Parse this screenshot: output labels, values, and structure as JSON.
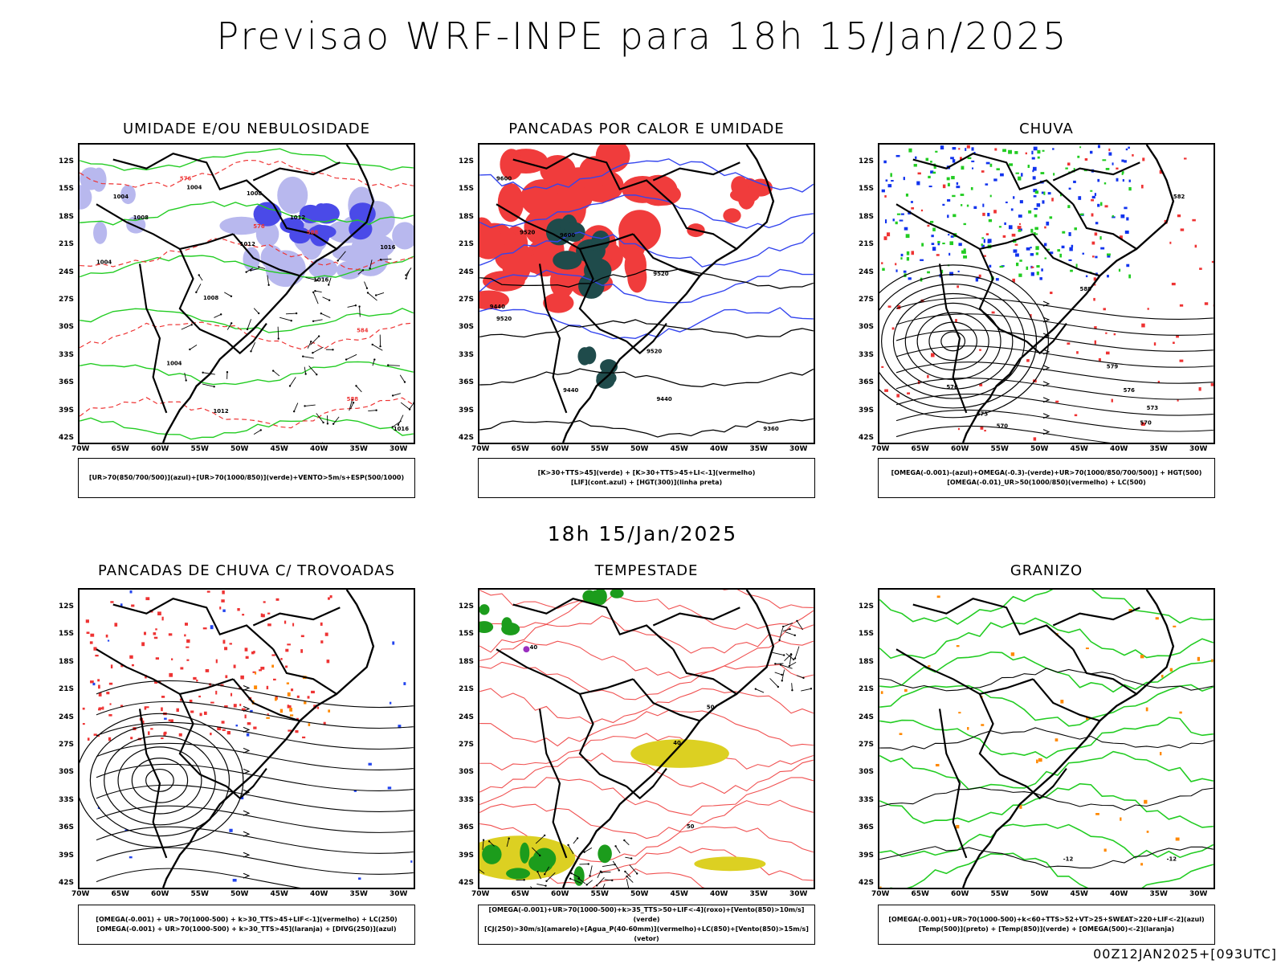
{
  "header": {
    "title": "Previsao WRF-INPE  para 18h 15/Jan/2025"
  },
  "middle_stamp": "18h 15/Jan/2025",
  "footer_stamp": "00Z12JAN2025+[093UTC]",
  "axes": {
    "lat_ticks": [
      "12S",
      "15S",
      "18S",
      "21S",
      "24S",
      "27S",
      "30S",
      "33S",
      "36S",
      "39S",
      "42S"
    ],
    "lon_ticks": [
      "70W",
      "65W",
      "60W",
      "55W",
      "50W",
      "45W",
      "40W",
      "35W",
      "30W"
    ]
  },
  "panels": [
    {
      "id": "umidade",
      "title": "UMIDADE E/OU NEBULOSIDADE",
      "legend": [
        "[UR>70(850/700/500)](azul)+[UR>70(1000/850)](verde)+VENTO>5m/s+ESP(500/1000)"
      ],
      "labels": [
        "1004",
        "1004",
        "1008",
        "1008",
        "1012",
        "1012",
        "1016",
        "1016",
        "1004",
        "1004",
        "1008",
        "1012",
        "1016",
        "576",
        "576",
        "584",
        "588",
        "588"
      ]
    },
    {
      "id": "pancadas_calor",
      "title": "PANCADAS POR CALOR E UMIDADE",
      "legend": [
        "[K>30+TTS>45](verde) + [K>30+TTS>45+LI<-1](vermelho)",
        "[LIF](cont.azul) + [HGT(300)](linha preta)"
      ],
      "labels": [
        "9600",
        "9520",
        "9440",
        "9520",
        "9600",
        "9520",
        "9520",
        "9440",
        "9440",
        "9360"
      ]
    },
    {
      "id": "chuva",
      "title": "CHUVA",
      "legend": [
        "[OMEGA(-0.001)-(azul)+OMEGA(-0.3)-(verde)+UR>70(1000/850/700/500)] + HGT(500)",
        "[OMEGA(-0.01)_UR>50(1000/850)(vermelho) + LC(500)"
      ],
      "labels": [
        "582",
        "588",
        "579",
        "576",
        "576",
        "573",
        "573",
        "570",
        "570"
      ]
    },
    {
      "id": "pancadas_trovoadas",
      "title": "PANCADAS DE CHUVA C/ TROVOADAS",
      "legend": [
        "[OMEGA(-0.001) + UR>70(1000-500) + k>30_TTS>45+LIF<-1](vermelho) + LC(250)",
        "[OMEGA(-0.001) + UR>70(1000-500) + k>30_TTS>45](laranja) + [DIVG(250)](azul)"
      ],
      "labels": []
    },
    {
      "id": "tempestade",
      "title": "TEMPESTADE",
      "legend": [
        "[OMEGA(-0.001)+UR>70(1000-500)+k>35_TTS>50+LIF<-4](roxo)+[Vento(850)>10m/s](verde)",
        "[CJ(250)>30m/s](amarelo)+[Agua_P(40-60mm)](vermelho)+LC(850)+[Vento(850)>15m/s](vetor)"
      ],
      "labels": [
        "40",
        "40",
        "50",
        "50"
      ]
    },
    {
      "id": "granizo",
      "title": "GRANIZO",
      "legend": [
        "[OMEGA(-0.001)+UR>70(1000-500)+k<60+TTS>52+VT>25+SWEAT>220+LIF<-2](azul)",
        "[Temp(500)](preto) + [Temp(850)](verde) + [OMEGA(500)<-2](laranja)"
      ],
      "labels": [
        "-12",
        "-12"
      ]
    }
  ]
}
